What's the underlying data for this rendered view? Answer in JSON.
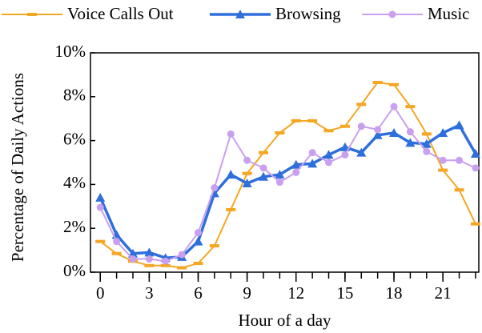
{
  "chart_data": {
    "type": "line",
    "x_label": "Hour of a day",
    "y_label": "Percentage of Daily Actions",
    "x": [
      0,
      1,
      2,
      3,
      4,
      5,
      6,
      7,
      8,
      9,
      10,
      11,
      12,
      13,
      14,
      15,
      16,
      17,
      18,
      19,
      20,
      21,
      22,
      23
    ],
    "series": [
      {
        "name": "Voice Calls Out",
        "color": "#f5a623",
        "marker": "dash",
        "values": [
          1.4,
          0.85,
          0.5,
          0.3,
          0.3,
          0.2,
          0.4,
          1.2,
          2.85,
          4.5,
          5.45,
          6.35,
          6.9,
          6.9,
          6.45,
          6.65,
          7.65,
          8.65,
          8.55,
          7.55,
          6.3,
          4.65,
          3.75,
          2.2
        ]
      },
      {
        "name": "Browsing",
        "color": "#2e6fdc",
        "marker": "triangle",
        "values": [
          3.4,
          1.7,
          0.85,
          0.9,
          0.65,
          0.7,
          1.4,
          3.6,
          4.45,
          4.05,
          4.35,
          4.45,
          4.9,
          4.95,
          5.35,
          5.7,
          5.45,
          6.25,
          6.35,
          5.9,
          5.85,
          6.35,
          6.7,
          5.4
        ]
      },
      {
        "name": "Music",
        "color": "#c99ff0",
        "marker": "circle",
        "values": [
          2.95,
          1.4,
          0.6,
          0.6,
          0.5,
          0.8,
          1.8,
          3.85,
          6.3,
          5.1,
          4.75,
          4.1,
          4.55,
          5.45,
          5.0,
          5.35,
          6.65,
          6.5,
          7.55,
          6.4,
          5.5,
          5.1,
          5.1,
          4.75
        ]
      }
    ],
    "xlim": [
      -0.6,
      23.2
    ],
    "xticks": [
      0,
      3,
      6,
      9,
      12,
      15,
      18,
      21
    ],
    "ylim": [
      0,
      10
    ],
    "yticks": [
      {
        "value": 0,
        "label": "0%"
      },
      {
        "value": 2,
        "label": "2%"
      },
      {
        "value": 4,
        "label": "4%"
      },
      {
        "value": 6,
        "label": "6%"
      },
      {
        "value": 8,
        "label": "8%"
      },
      {
        "value": 10,
        "label": "10%"
      }
    ],
    "legend": "top"
  }
}
